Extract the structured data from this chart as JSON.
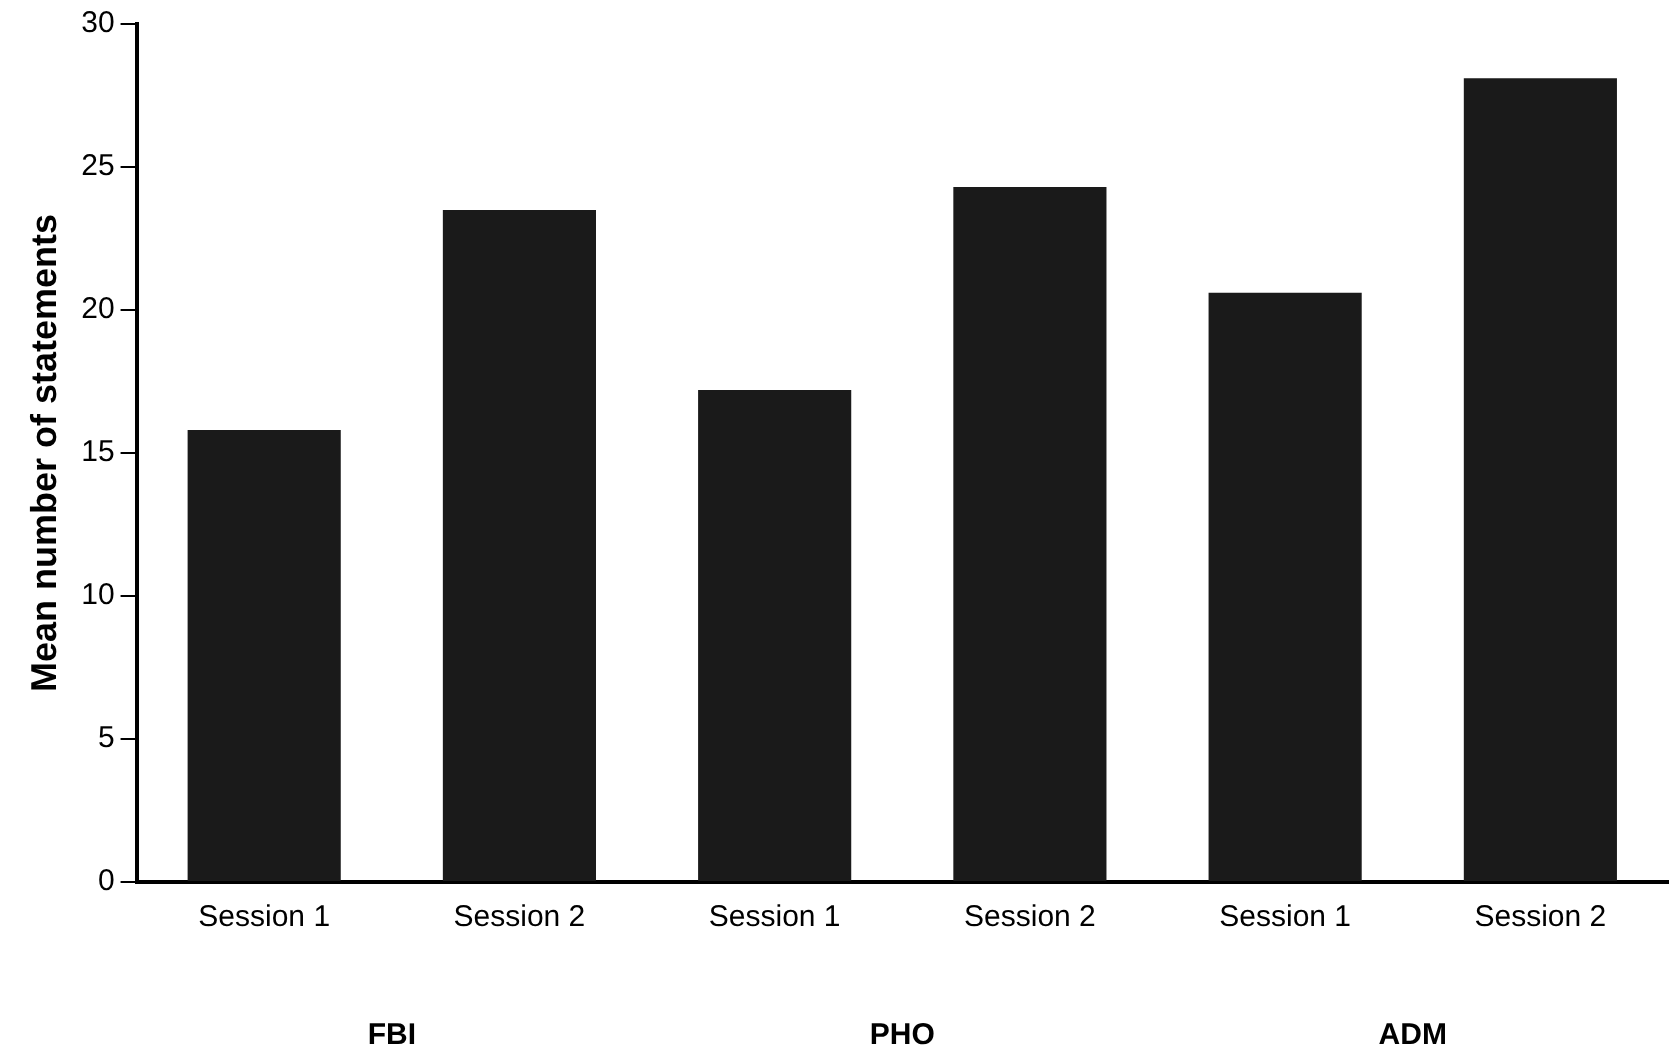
{
  "chart_data": {
    "type": "bar",
    "ylabel": "Mean number of statements",
    "categories": [
      "Session 1",
      "Session 2",
      "Session 1",
      "Session 2",
      "Session 1",
      "Session 2"
    ],
    "values": [
      15.8,
      23.5,
      17.2,
      24.3,
      20.6,
      28.1
    ],
    "color": "#1a1a1a",
    "ylim": [
      0,
      30
    ],
    "yticks": [
      0,
      5,
      10,
      15,
      20,
      25,
      30
    ],
    "grid": false,
    "legend": false,
    "annotations": [
      "FBI",
      "PHO",
      "ADM"
    ]
  }
}
